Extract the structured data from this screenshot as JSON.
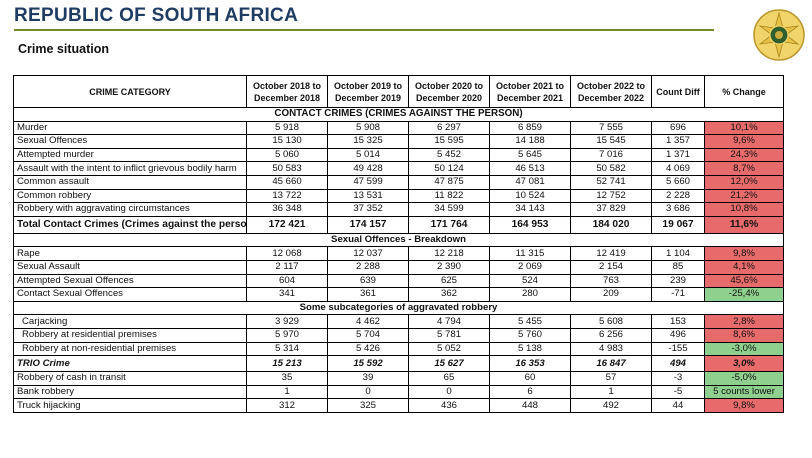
{
  "header": {
    "title": "REPUBLIC OF SOUTH AFRICA",
    "subtitle": "Crime situation"
  },
  "table": {
    "columns": [
      "CRIME CATEGORY",
      "October 2018 to December 2018",
      "October 2019 to December 2019",
      "October 2020 to December 2020",
      "October 2021 to December 2021",
      "October 2022 to December 2022",
      "Count Diff",
      "% Change"
    ],
    "section_contact": "CONTACT CRIMES (CRIMES AGAINST THE PERSON)",
    "contact_rows": [
      {
        "label": "Murder",
        "v": [
          "5 918",
          "5 908",
          "6 297",
          "6 859",
          "7 555"
        ],
        "diff": "696",
        "pct": "10,1%",
        "status": "red"
      },
      {
        "label": "Sexual Offences",
        "v": [
          "15 130",
          "15 325",
          "15 595",
          "14 188",
          "15 545"
        ],
        "diff": "1 357",
        "pct": "9,6%",
        "status": "red"
      },
      {
        "label": "Attempted murder",
        "v": [
          "5 060",
          "5 014",
          "5 452",
          "5 645",
          "7 016"
        ],
        "diff": "1 371",
        "pct": "24,3%",
        "status": "red"
      },
      {
        "label": "Assault with the intent to inflict grievous bodily harm",
        "v": [
          "50 583",
          "49 428",
          "50 124",
          "46 513",
          "50 582"
        ],
        "diff": "4 069",
        "pct": "8,7%",
        "status": "red"
      },
      {
        "label": "Common assault",
        "v": [
          "45 660",
          "47 599",
          "47 875",
          "47 081",
          "52 741"
        ],
        "diff": "5 660",
        "pct": "12,0%",
        "status": "red"
      },
      {
        "label": "Common robbery",
        "v": [
          "13 722",
          "13 531",
          "11 822",
          "10 524",
          "12 752"
        ],
        "diff": "2 228",
        "pct": "21,2%",
        "status": "red"
      },
      {
        "label": "Robbery with aggravating circumstances",
        "v": [
          "36 348",
          "37 352",
          "34 599",
          "34 143",
          "37 829"
        ],
        "diff": "3 686",
        "pct": "10,8%",
        "status": "red"
      }
    ],
    "total_contact": {
      "label": "Total Contact Crimes (Crimes against the person)",
      "v": [
        "172 421",
        "174 157",
        "171 764",
        "164 953",
        "184 020"
      ],
      "diff": "19 067",
      "pct": "11,6%",
      "status": "red"
    },
    "section_sexual": "Sexual Offences - Breakdown",
    "sexual_rows": [
      {
        "label": "Rape",
        "v": [
          "12 068",
          "12 037",
          "12 218",
          "11 315",
          "12 419"
        ],
        "diff": "1 104",
        "pct": "9,8%",
        "status": "red"
      },
      {
        "label": "Sexual Assault",
        "v": [
          "2 117",
          "2 288",
          "2 390",
          "2 069",
          "2 154"
        ],
        "diff": "85",
        "pct": "4,1%",
        "status": "red"
      },
      {
        "label": "Attempted Sexual Offences",
        "v": [
          "604",
          "639",
          "625",
          "524",
          "763"
        ],
        "diff": "239",
        "pct": "45,6%",
        "status": "red"
      },
      {
        "label": "Contact Sexual Offences",
        "v": [
          "341",
          "361",
          "362",
          "280",
          "209"
        ],
        "diff": "-71",
        "pct": "-25,4%",
        "status": "green"
      }
    ],
    "section_aggr": "Some subcategories of aggravated robbery",
    "aggr_rows": [
      {
        "label": "Carjacking",
        "v": [
          "3 929",
          "4 462",
          "4 794",
          "5 455",
          "5 608"
        ],
        "diff": "153",
        "pct": "2,8%",
        "status": "red"
      },
      {
        "label": "Robbery at residential premises",
        "v": [
          "5 970",
          "5 704",
          "5 781",
          "5 760",
          "6 256"
        ],
        "diff": "496",
        "pct": "8,6%",
        "status": "red"
      },
      {
        "label": "Robbery at non-residential premises",
        "v": [
          "5 314",
          "5 426",
          "5 052",
          "5 138",
          "4 983"
        ],
        "diff": "-155",
        "pct": "-3,0%",
        "status": "green"
      }
    ],
    "trio": {
      "label": "TRIO Crime",
      "v": [
        "15 213",
        "15 592",
        "15 627",
        "16 353",
        "16 847"
      ],
      "diff": "494",
      "pct": "3,0%",
      "status": "red"
    },
    "other_rows": [
      {
        "label": "Robbery of cash in transit",
        "v": [
          "35",
          "39",
          "65",
          "60",
          "57"
        ],
        "diff": "-3",
        "pct": "-5,0%",
        "status": "green"
      },
      {
        "label": "Bank robbery",
        "v": [
          "1",
          "0",
          "0",
          "6",
          "1"
        ],
        "diff": "-5",
        "pct": "5 counts lower",
        "status": "green"
      },
      {
        "label": "Truck hijacking",
        "v": [
          "312",
          "325",
          "436",
          "448",
          "492"
        ],
        "diff": "44",
        "pct": "9,8%",
        "status": "red"
      }
    ],
    "colors": {
      "red": "#e86b6b",
      "green": "#8fd08f"
    }
  }
}
